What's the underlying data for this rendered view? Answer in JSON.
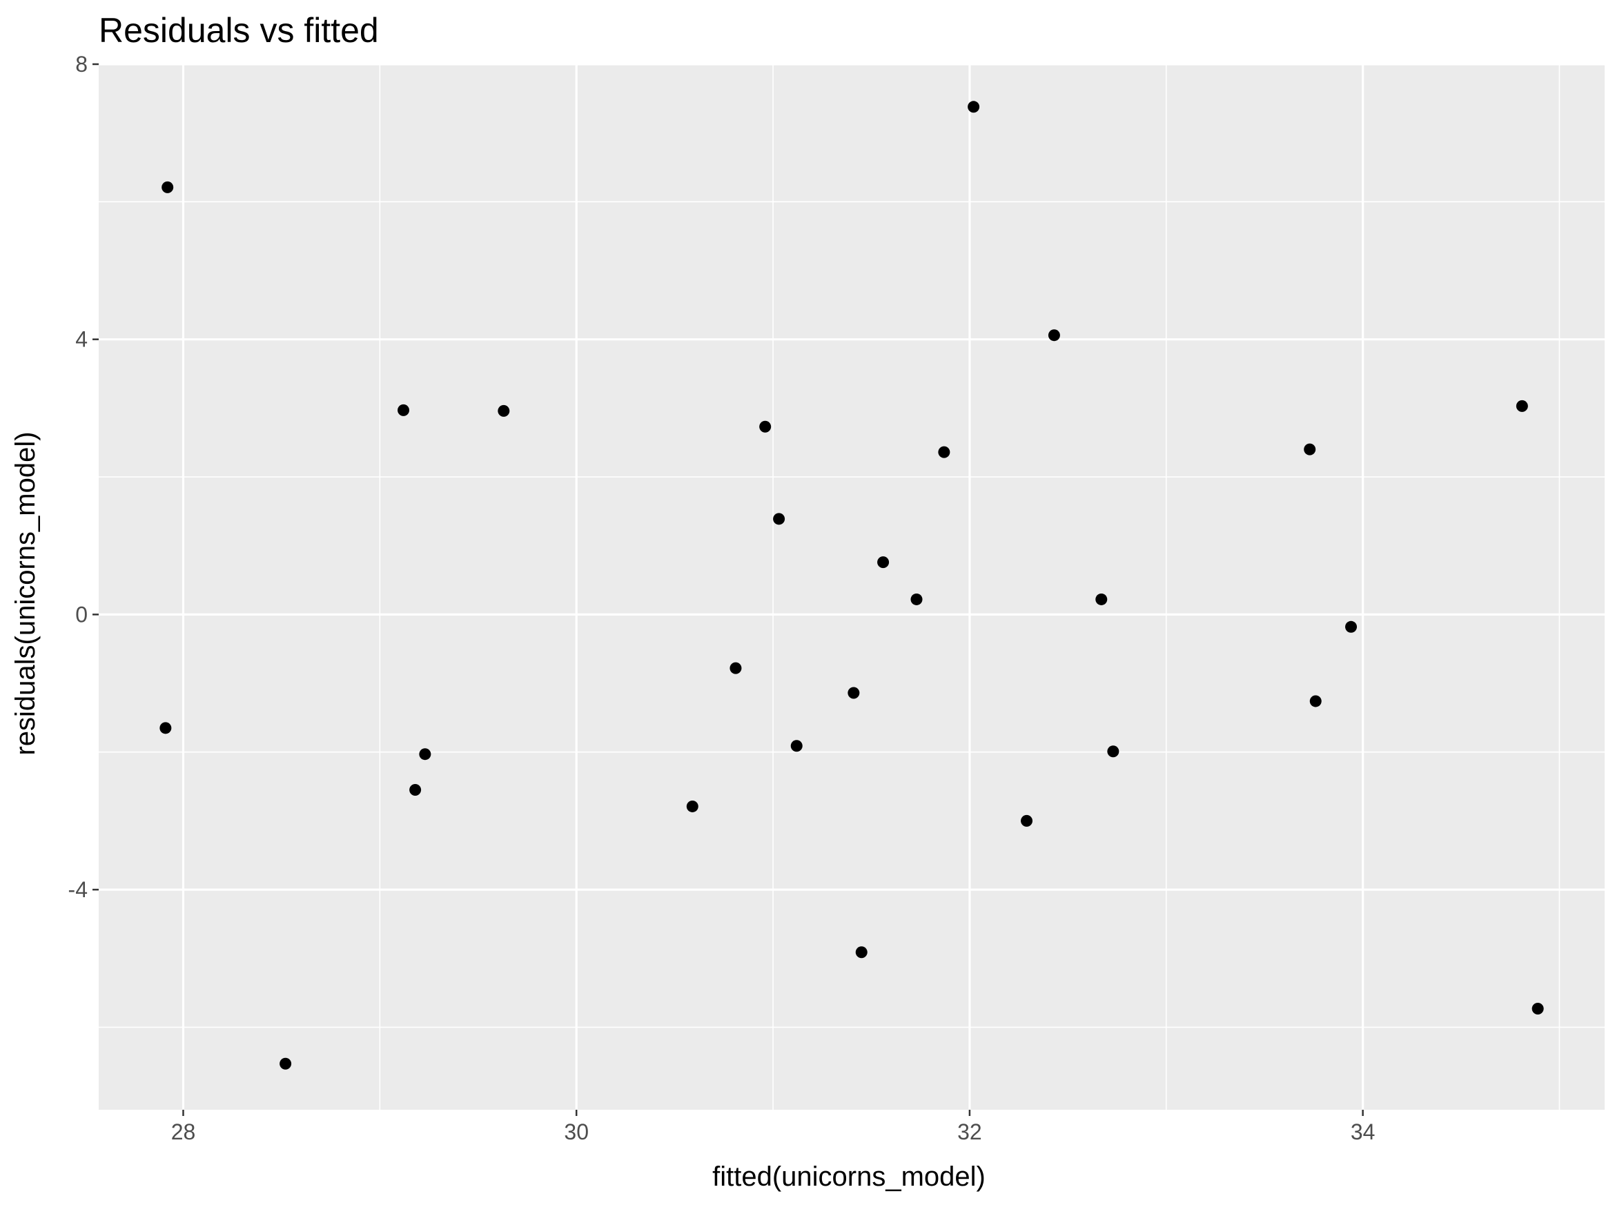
{
  "chart_data": {
    "type": "scatter",
    "title": "Residuals vs fitted",
    "xlabel": "fitted(unicorns_model)",
    "ylabel": "residuals(unicorns_model)",
    "xlim": [
      27.57,
      35.23
    ],
    "ylim": [
      -7.2,
      8.0
    ],
    "xticks": [
      28,
      30,
      32,
      34
    ],
    "xtick_labels": [
      "28",
      "30",
      "32",
      "34"
    ],
    "yticks": [
      -4,
      0,
      4,
      8
    ],
    "ytick_labels": [
      "-4",
      "0",
      "4",
      "8"
    ],
    "x_minor": [
      29,
      31,
      33,
      35
    ],
    "y_minor": [
      -6,
      -2,
      2,
      6
    ],
    "grid": true,
    "panel_color": "#ebebeb",
    "grid_color": "#ffffff",
    "point_color": "#000000",
    "points": [
      {
        "x": 27.92,
        "y": 6.21
      },
      {
        "x": 27.91,
        "y": -1.65
      },
      {
        "x": 28.52,
        "y": -6.53
      },
      {
        "x": 29.12,
        "y": 2.97
      },
      {
        "x": 29.18,
        "y": -2.55
      },
      {
        "x": 29.23,
        "y": -2.03
      },
      {
        "x": 29.63,
        "y": 2.96
      },
      {
        "x": 30.59,
        "y": -2.79
      },
      {
        "x": 30.81,
        "y": -0.78
      },
      {
        "x": 30.96,
        "y": 2.73
      },
      {
        "x": 31.03,
        "y": 1.39
      },
      {
        "x": 31.12,
        "y": -1.91
      },
      {
        "x": 31.41,
        "y": -1.14
      },
      {
        "x": 31.45,
        "y": -4.91
      },
      {
        "x": 31.56,
        "y": 0.76
      },
      {
        "x": 31.73,
        "y": 0.22
      },
      {
        "x": 31.87,
        "y": 2.36
      },
      {
        "x": 32.02,
        "y": 7.38
      },
      {
        "x": 32.29,
        "y": -3.0
      },
      {
        "x": 32.43,
        "y": 4.06
      },
      {
        "x": 32.67,
        "y": 0.22
      },
      {
        "x": 32.73,
        "y": -1.99
      },
      {
        "x": 33.73,
        "y": 2.4
      },
      {
        "x": 33.76,
        "y": -1.26
      },
      {
        "x": 33.94,
        "y": -0.18
      },
      {
        "x": 34.81,
        "y": 3.03
      },
      {
        "x": 34.89,
        "y": -5.73
      }
    ]
  }
}
